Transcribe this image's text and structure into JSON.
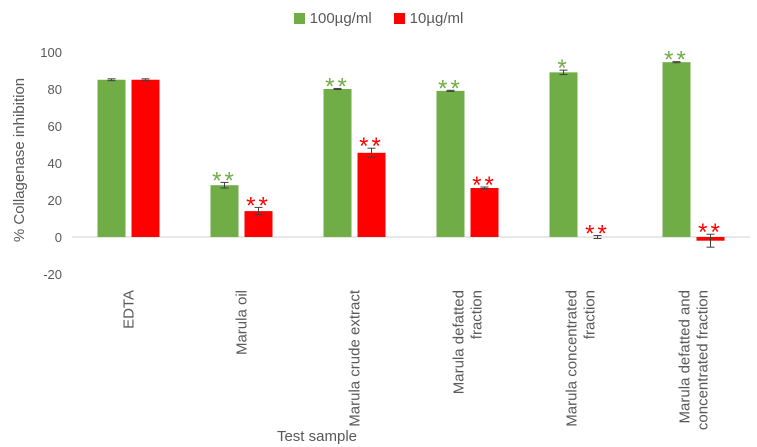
{
  "chart_data": {
    "type": "bar",
    "title": "",
    "xlabel": "Test sample",
    "ylabel": "% Collagenase inhibition",
    "ylim": [
      -20,
      100
    ],
    "yticks": [
      -20,
      0,
      20,
      40,
      60,
      80,
      100
    ],
    "grid": false,
    "legend_position": "top",
    "categories": [
      [
        "EDTA"
      ],
      [
        "Marula oil"
      ],
      [
        "Marula crude extract"
      ],
      [
        "Marula defatted",
        "fraction"
      ],
      [
        "Marula concentrated",
        "fraction"
      ],
      [
        "Marula defatted and",
        "concentrated fraction"
      ]
    ],
    "series": [
      {
        "name": "100µg/ml",
        "color": "#70ad47",
        "values": [
          85,
          28,
          80,
          79,
          89,
          94.5
        ],
        "errors": [
          0.5,
          1.5,
          0.3,
          0.3,
          1.2,
          0.3
        ],
        "significance": [
          "",
          "**",
          "**",
          "**",
          "*",
          "**"
        ]
      },
      {
        "name": "10µg/ml",
        "color": "#ff0000",
        "values": [
          85,
          14,
          45.5,
          26.5,
          0,
          -2
        ],
        "errors": [
          0.5,
          2,
          2.5,
          0.5,
          0.8,
          3.5
        ],
        "significance": [
          "",
          "**",
          "**",
          "**",
          "**",
          "**"
        ]
      }
    ]
  }
}
